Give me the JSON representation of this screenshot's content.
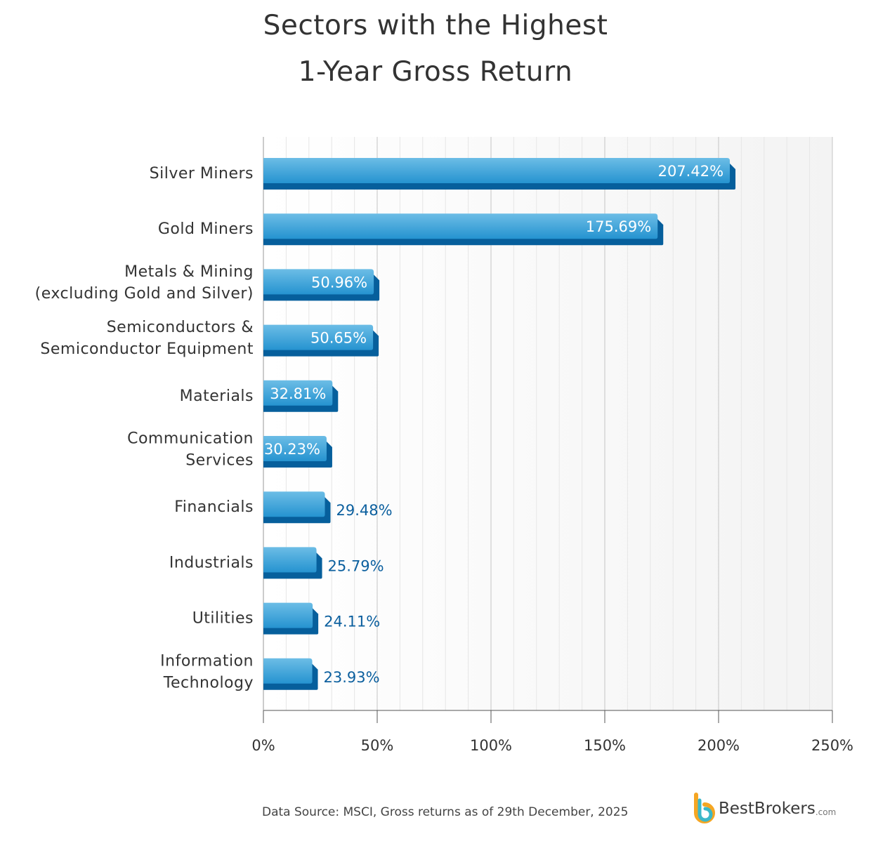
{
  "chart_data": {
    "type": "bar",
    "orientation": "horizontal",
    "title_lines": [
      "Sectors with the Highest",
      "1-Year Gross Return"
    ],
    "categories": [
      [
        "Silver Miners"
      ],
      [
        "Gold Miners"
      ],
      [
        "Metals & Mining",
        "(excluding Gold and Silver)"
      ],
      [
        "Semiconductors &",
        "Semiconductor Equipment"
      ],
      [
        "Materials"
      ],
      [
        "Communication",
        "Services"
      ],
      [
        "Financials"
      ],
      [
        "Industrials"
      ],
      [
        "Utilities"
      ],
      [
        "Information",
        "Technology"
      ]
    ],
    "values": [
      207.42,
      175.69,
      50.96,
      50.65,
      32.81,
      30.23,
      29.48,
      25.79,
      24.11,
      23.93
    ],
    "data_labels": [
      "207.42%",
      "175.69%",
      "50.96%",
      "50.65%",
      "32.81%",
      "30.23%",
      "29.48%",
      "25.79%",
      "24.11%",
      "23.93%"
    ],
    "xlim": [
      0,
      250
    ],
    "xticks": [
      "0%",
      "50%",
      "100%",
      "150%",
      "200%",
      "250%"
    ],
    "grid": true,
    "colors": {
      "bar_top": "#6cbde6",
      "bar_face": "#2d9bd6",
      "bar_shadow": "#065f9c",
      "outside_label": "#0b5f9e"
    }
  },
  "footer": {
    "source": "Data Source: MSCI, Gross returns as of 29th December, 2025",
    "logo": "BestBrokers",
    "logo_suffix": ".com"
  }
}
